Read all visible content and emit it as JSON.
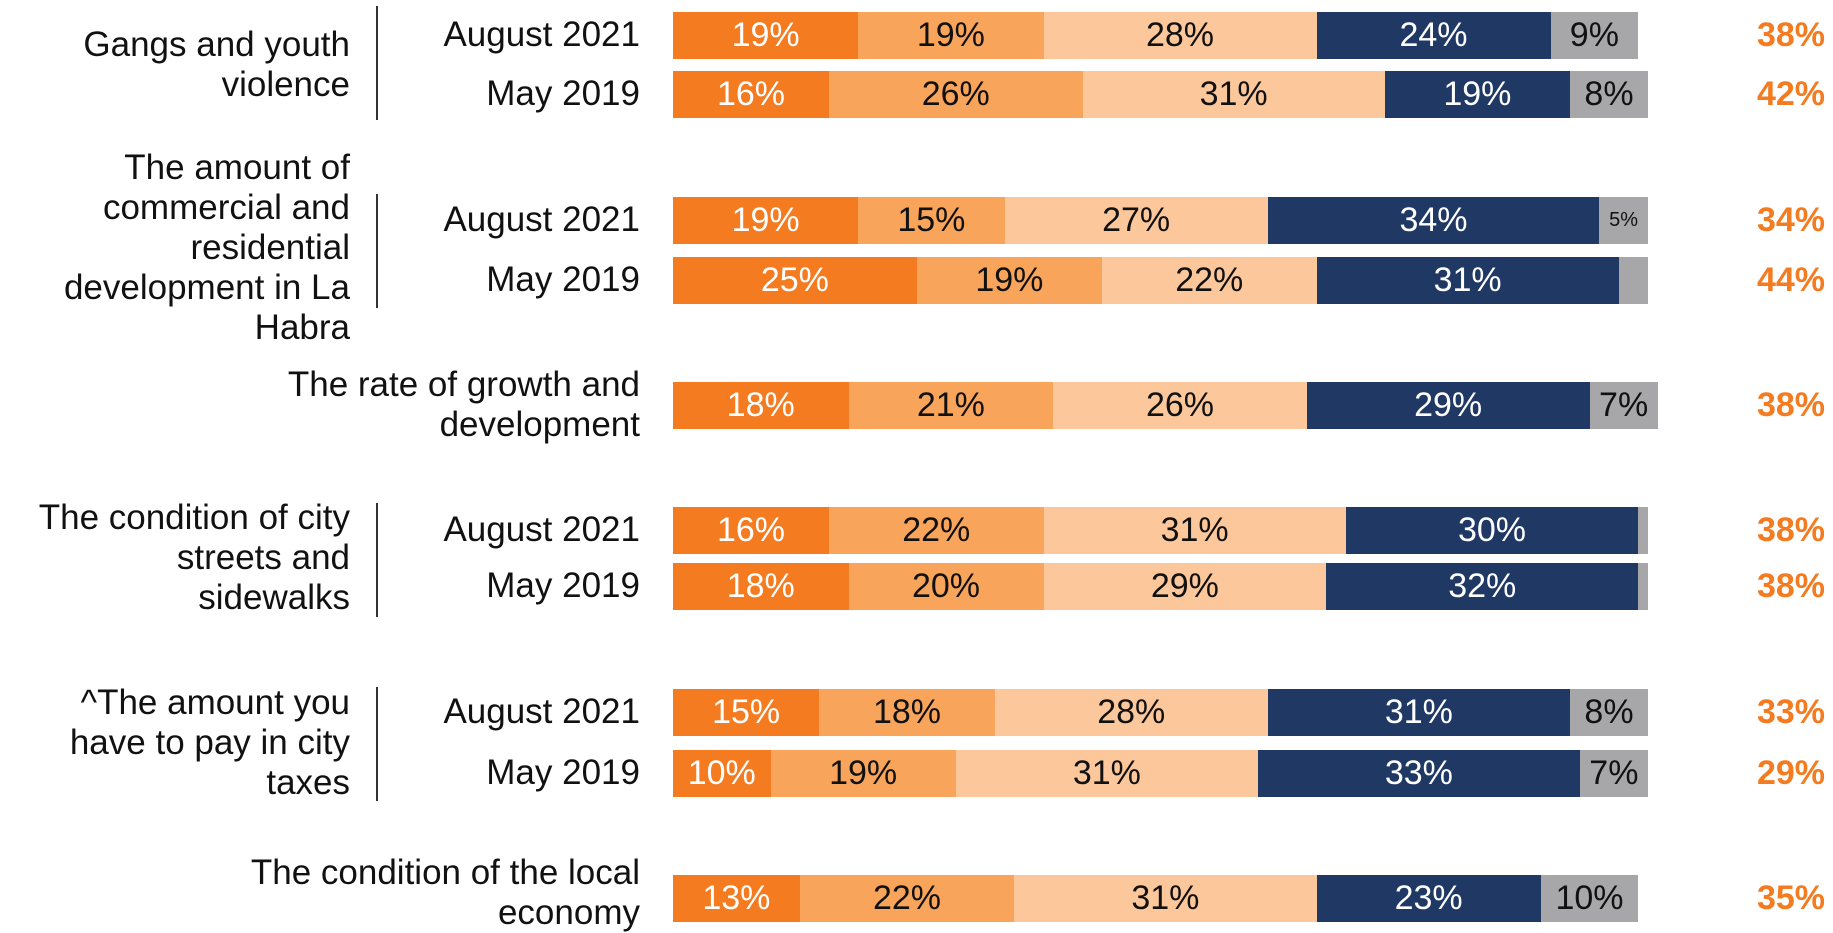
{
  "chart_data": {
    "type": "bar",
    "orientation": "horizontal",
    "stacked": true,
    "colors": [
      "#f47b20",
      "#f8a55b",
      "#fcc79b",
      "#1f3864",
      "#a7a7aa"
    ],
    "total_color": "#f47b20",
    "xlim": [
      0,
      100
    ],
    "groups": [
      {
        "label": "Gangs and youth violence",
        "categories": [
          "August 2021",
          "May 2019"
        ],
        "values": [
          [
            19,
            19,
            28,
            24,
            9
          ],
          [
            16,
            26,
            31,
            19,
            8
          ]
        ],
        "value_labels": [
          [
            "19%",
            "19%",
            "28%",
            "24%",
            "9%"
          ],
          [
            "16%",
            "26%",
            "31%",
            "19%",
            "8%"
          ]
        ],
        "totals": [
          38,
          42
        ],
        "total_labels": [
          "38%",
          "42%"
        ]
      },
      {
        "label": "The amount of commercial and residential development in La Habra",
        "categories": [
          "August 2021",
          "May 2019"
        ],
        "values": [
          [
            19,
            15,
            27,
            34,
            5
          ],
          [
            25,
            19,
            22,
            31,
            3
          ]
        ],
        "value_labels": [
          [
            "19%",
            "15%",
            "27%",
            "34%",
            "5%"
          ],
          [
            "25%",
            "19%",
            "22%",
            "31%",
            null
          ]
        ],
        "totals": [
          34,
          44
        ],
        "total_labels": [
          "34%",
          "44%"
        ]
      },
      {
        "label": "The rate of growth and development",
        "categories": [
          null
        ],
        "values": [
          [
            18,
            21,
            26,
            29,
            7
          ]
        ],
        "value_labels": [
          [
            "18%",
            "21%",
            "26%",
            "29%",
            "7%"
          ]
        ],
        "totals": [
          38
        ],
        "total_labels": [
          "38%"
        ]
      },
      {
        "label": "The condition of city streets and sidewalks",
        "categories": [
          "August 2021",
          "May 2019"
        ],
        "values": [
          [
            16,
            22,
            31,
            30,
            1
          ],
          [
            18,
            20,
            29,
            32,
            1
          ]
        ],
        "value_labels": [
          [
            "16%",
            "22%",
            "31%",
            "30%",
            null
          ],
          [
            "18%",
            "20%",
            "29%",
            "32%",
            null
          ]
        ],
        "totals": [
          38,
          38
        ],
        "total_labels": [
          "38%",
          "38%"
        ]
      },
      {
        "label": "^The amount you have to pay in city taxes",
        "categories": [
          "August 2021",
          "May 2019"
        ],
        "values": [
          [
            15,
            18,
            28,
            31,
            8
          ],
          [
            10,
            19,
            31,
            33,
            7
          ]
        ],
        "value_labels": [
          [
            "15%",
            "18%",
            "28%",
            "31%",
            "8%"
          ],
          [
            "10%",
            "19%",
            "31%",
            "33%",
            "7%"
          ]
        ],
        "totals": [
          33,
          29
        ],
        "total_labels": [
          "33%",
          "29%"
        ]
      },
      {
        "label": "The condition of the local economy",
        "categories": [
          null
        ],
        "values": [
          [
            13,
            22,
            31,
            23,
            10
          ]
        ],
        "value_labels": [
          [
            "13%",
            "22%",
            "31%",
            "23%",
            "10%"
          ]
        ],
        "totals": [
          35
        ],
        "total_labels": [
          "35%"
        ]
      }
    ]
  }
}
